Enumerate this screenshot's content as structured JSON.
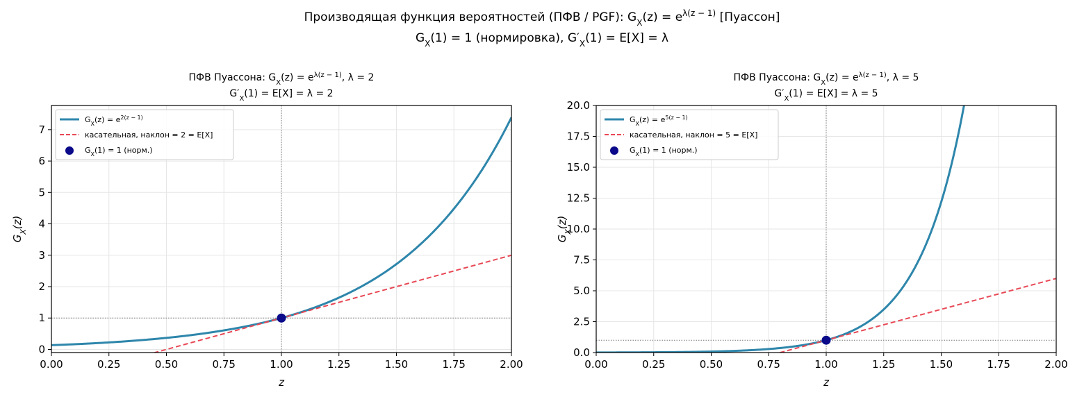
{
  "figure": {
    "suptitle_line1": "Производящая функция вероятностей (ПФВ / PGF): G_X(z) = e^{λ(z − 1)}  [Пуассон]",
    "suptitle_line2": "G_X(1) = 1 (нормировка),  G′_X(1) = E[X] = λ"
  },
  "chart_data": [
    {
      "type": "line",
      "title_line1": "ПФВ Пуассона: G_X(z) = e^{λ(z − 1)},  λ = 2",
      "title_line2": "G′_X(1) = E[X] = λ = 2",
      "xlabel": "z",
      "ylabel": "G_X(z)",
      "lambda": 2,
      "xlim": [
        0,
        2
      ],
      "ylim": [
        -0.1,
        7.77
      ],
      "xticks": [
        "0.00",
        "0.25",
        "0.50",
        "0.75",
        "1.00",
        "1.25",
        "1.50",
        "1.75",
        "2.00"
      ],
      "yticks": [
        "0",
        "1",
        "2",
        "3",
        "4",
        "5",
        "6",
        "7"
      ],
      "grid": true,
      "legend_position": "top-left",
      "series": [
        {
          "name": "G_X(z) = e^{2(z − 1)}",
          "kind": "pgf",
          "color": "#2e86ab",
          "points": [
            [
              0,
              0.135
            ],
            [
              0.25,
              0.223
            ],
            [
              0.5,
              0.368
            ],
            [
              0.75,
              0.607
            ],
            [
              1,
              1
            ],
            [
              1.25,
              1.649
            ],
            [
              1.5,
              2.718
            ],
            [
              1.75,
              4.482
            ],
            [
              2,
              7.389
            ]
          ]
        },
        {
          "name": "касательная, наклон = 2 = E[X]",
          "kind": "tangent",
          "color": "#e84855",
          "slope": 2,
          "points": [
            [
              0.45,
              -0.1
            ],
            [
              2,
              3
            ]
          ]
        },
        {
          "name": "G_X(1) = 1 (норм.)",
          "kind": "marker",
          "color": "#0a0a8a",
          "points": [
            [
              1,
              1
            ]
          ]
        }
      ]
    },
    {
      "type": "line",
      "title_line1": "ПФВ Пуассона: G_X(z) = e^{λ(z − 1)},  λ = 5",
      "title_line2": "G′_X(1) = E[X] = λ = 5",
      "xlabel": "z",
      "ylabel": "G_X(z)",
      "lambda": 5,
      "xlim": [
        0,
        2
      ],
      "ylim": [
        0,
        20
      ],
      "xticks": [
        "0.00",
        "0.25",
        "0.50",
        "0.75",
        "1.00",
        "1.25",
        "1.50",
        "1.75",
        "2.00"
      ],
      "yticks": [
        "0.0",
        "2.5",
        "5.0",
        "7.5",
        "10.0",
        "12.5",
        "15.0",
        "17.5",
        "20.0"
      ],
      "grid": true,
      "legend_position": "top-left",
      "series": [
        {
          "name": "G_X(z) = e^{5(z − 1)}",
          "kind": "pgf",
          "color": "#2e86ab",
          "points": [
            [
              0,
              0.007
            ],
            [
              0.25,
              0.024
            ],
            [
              0.5,
              0.082
            ],
            [
              0.75,
              0.287
            ],
            [
              1,
              1
            ],
            [
              1.25,
              3.49
            ],
            [
              1.5,
              12.18
            ],
            [
              1.6,
              20.09
            ]
          ]
        },
        {
          "name": "касательная, наклон = 5 = E[X]",
          "kind": "tangent",
          "color": "#e84855",
          "slope": 5,
          "points": [
            [
              0.8,
              0
            ],
            [
              2,
              6
            ]
          ]
        },
        {
          "name": "G_X(1) = 1 (норм.)",
          "kind": "marker",
          "color": "#0a0a8a",
          "points": [
            [
              1,
              1
            ]
          ]
        }
      ]
    }
  ]
}
